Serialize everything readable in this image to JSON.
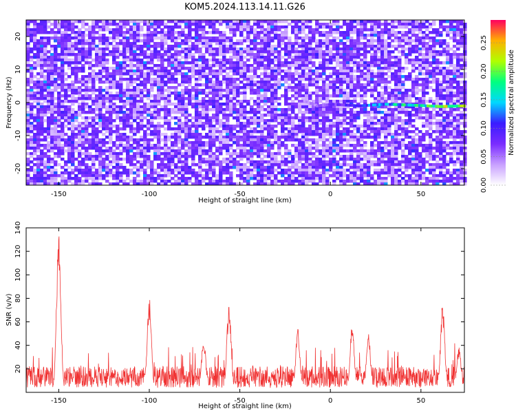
{
  "chart_data": [
    {
      "type": "heatmap",
      "title": "KOM5.2024.113.14.11.G26",
      "xlabel": "Height of straight line (km)",
      "ylabel": "Frequency (Hz)",
      "xlim": [
        -168,
        74
      ],
      "ylim": [
        -25,
        25
      ],
      "xticks": [
        -150,
        -100,
        -50,
        0,
        50
      ],
      "yticks": [
        -20,
        -10,
        0,
        10,
        20
      ],
      "colorbar": {
        "label": "Normalized spectral amplitude",
        "range": [
          0.0,
          0.29
        ],
        "ticks": [
          "0.00",
          "0.05",
          "0.10",
          "0.15",
          "0.20",
          "0.25"
        ],
        "colors": [
          "#ffffff",
          "#c8a0ff",
          "#7a2cff",
          "#3a1cff",
          "#00d8ff",
          "#00ff80",
          "#b0ff00",
          "#ffb000",
          "#ff0060"
        ]
      },
      "ridge": {
        "description_free": true,
        "points": [
          [
            -15,
            0.5
          ],
          [
            -8,
            -1.0
          ],
          [
            0,
            -0.5
          ],
          [
            15,
            -1.0
          ],
          [
            30,
            -0.5
          ],
          [
            45,
            -0.8
          ],
          [
            60,
            -1.2
          ],
          [
            74,
            -1.0
          ]
        ],
        "peak_value": 0.28
      }
    },
    {
      "type": "line",
      "xlabel": "Height of straight line (km)",
      "ylabel": "SNR (v/v)",
      "xlim": [
        -168,
        74
      ],
      "ylim": [
        0,
        140
      ],
      "xticks": [
        -150,
        -100,
        -50,
        0,
        50
      ],
      "yticks": [
        20,
        40,
        60,
        80,
        100,
        120,
        140
      ],
      "color": "#f03232",
      "baseline": 13,
      "peaks": [
        {
          "x": -150,
          "y": 140
        },
        {
          "x": -100,
          "y": 81
        },
        {
          "x": -56,
          "y": 76
        },
        {
          "x": -70,
          "y": 48
        },
        {
          "x": -18,
          "y": 54
        },
        {
          "x": 12,
          "y": 58
        },
        {
          "x": 21,
          "y": 51
        },
        {
          "x": 62,
          "y": 77
        },
        {
          "x": 71,
          "y": 40
        }
      ]
    }
  ]
}
